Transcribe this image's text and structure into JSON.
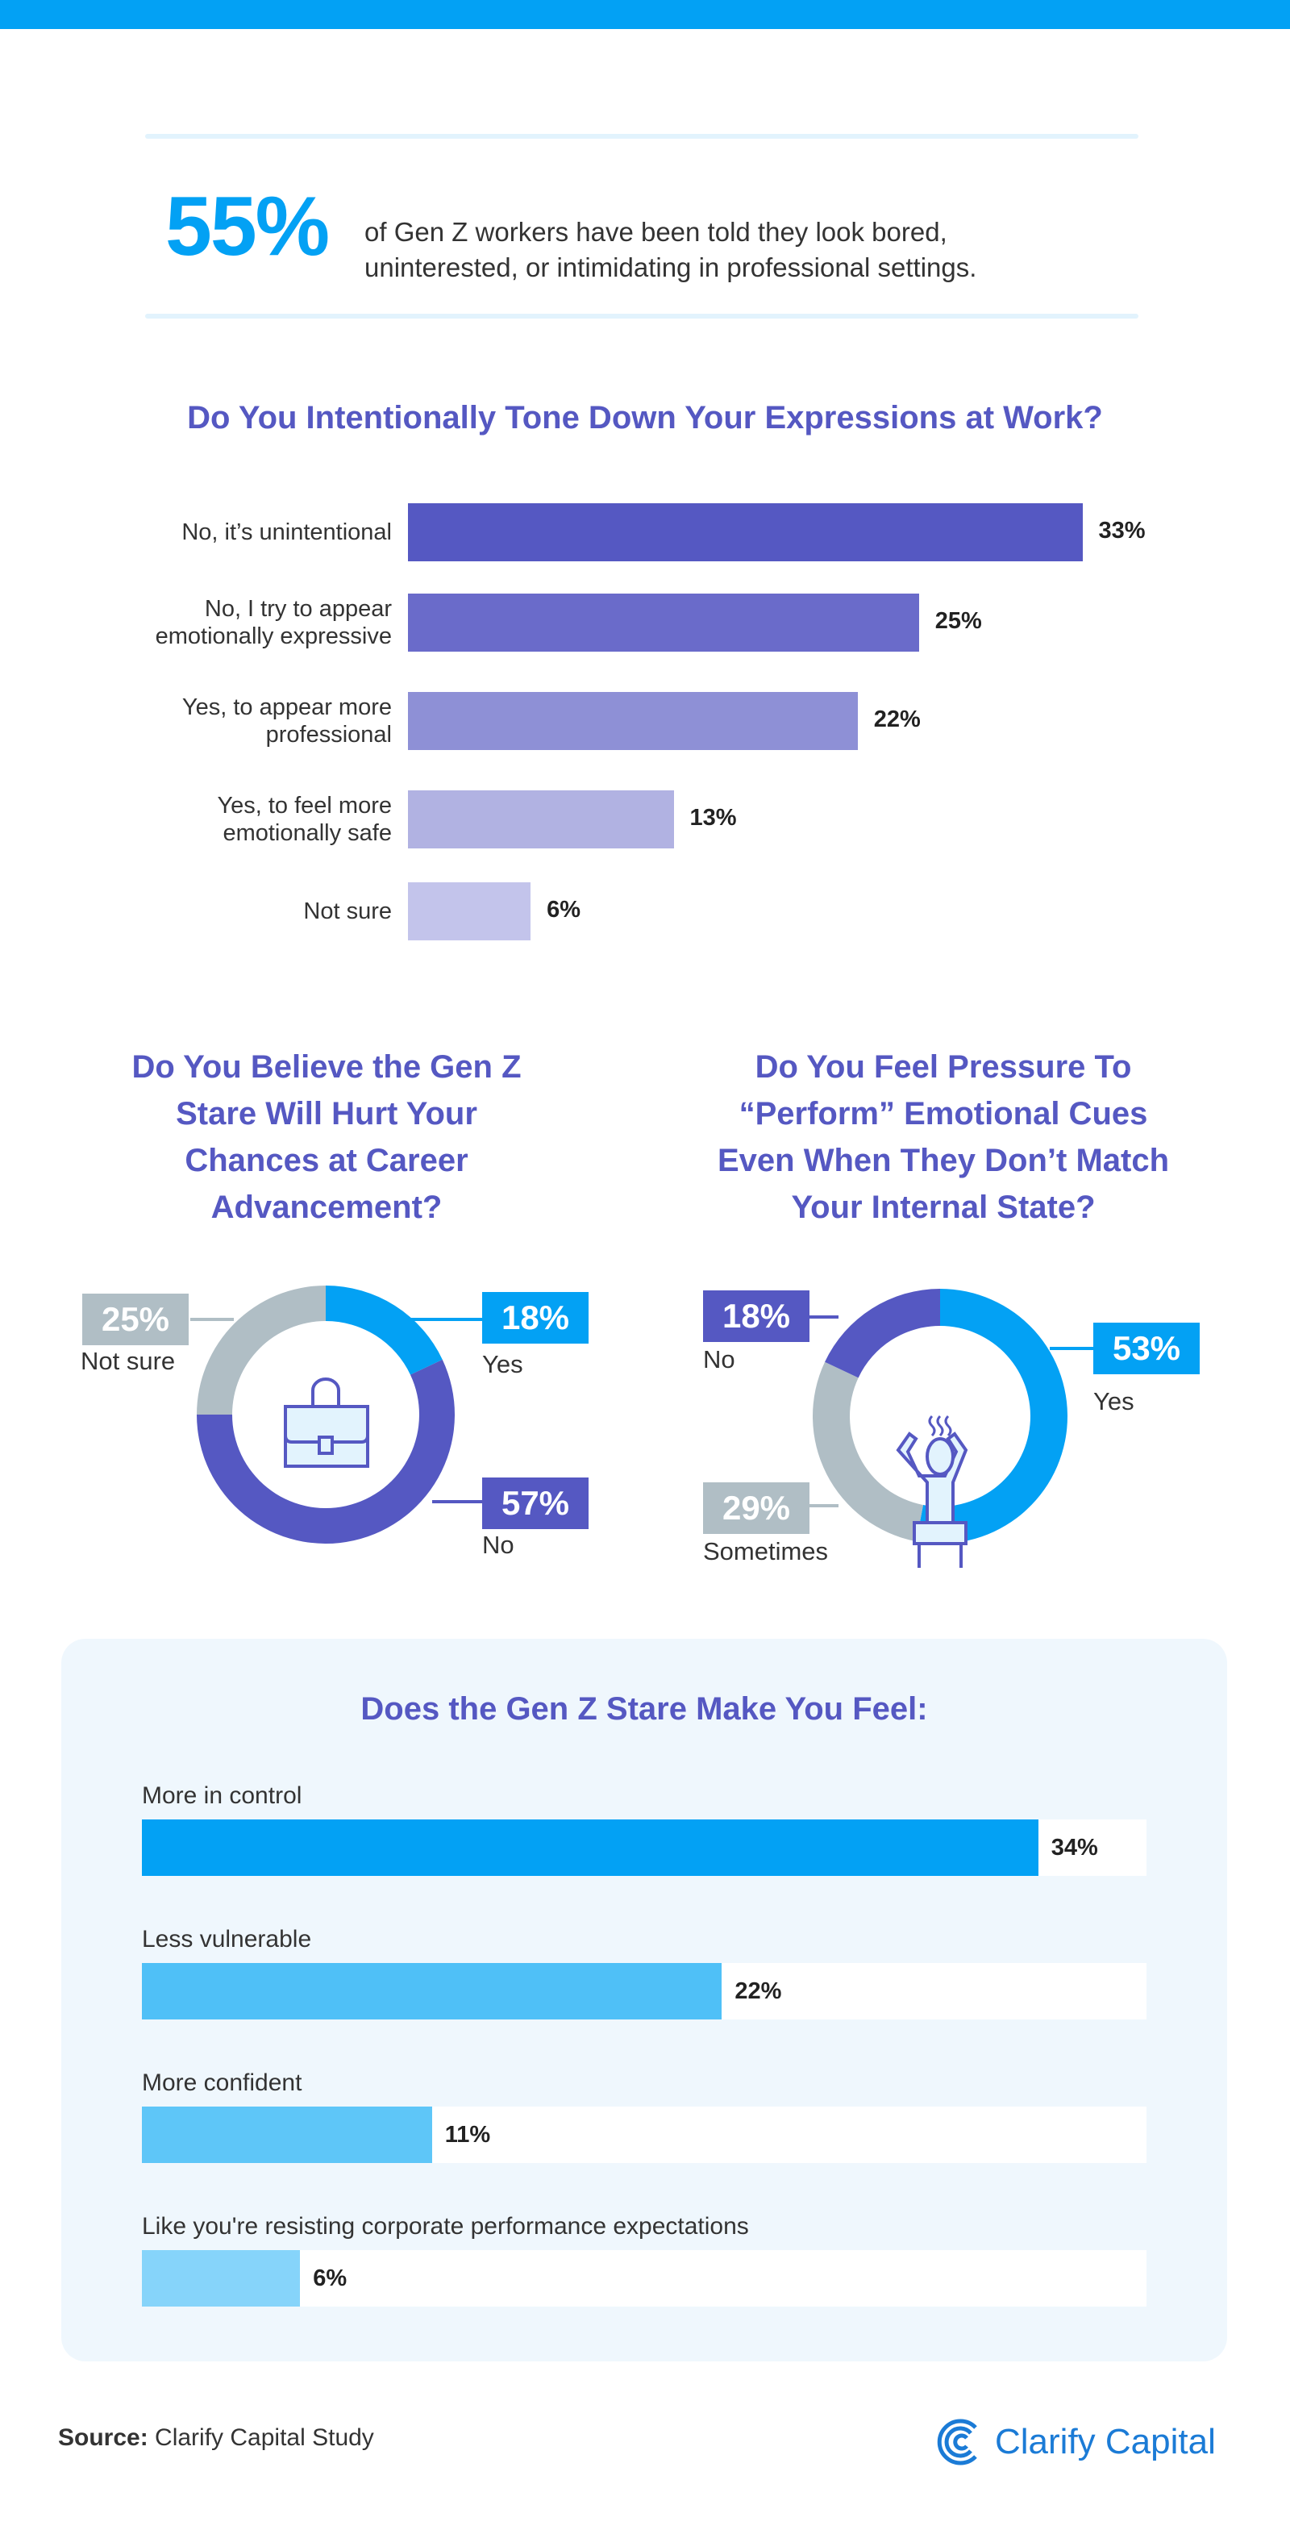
{
  "header": {
    "stat_value": "55%",
    "stat_text_line1": "of Gen Z workers have been told they look bored,",
    "stat_text_line2": "uninterested, or intimidating in professional settings."
  },
  "colors": {
    "blue": "#03a1f4",
    "purple": "#5558c2",
    "gray": "#b0bec5"
  },
  "chart_data": [
    {
      "type": "bar",
      "orientation": "horizontal",
      "title": "Do You Intentionally Tone Down Your Expressions at Work?",
      "categories": [
        "No, it’s unintentional",
        "No, I try to appear emotionally expressive",
        "Yes, to appear more professional",
        "Yes, to feel more emotionally safe",
        "Not sure"
      ],
      "category_lines": [
        [
          "No, it’s unintentional"
        ],
        [
          "No, I try to appear",
          "emotionally expressive"
        ],
        [
          "Yes, to appear more",
          "professional"
        ],
        [
          "Yes, to feel more",
          "emotionally safe"
        ],
        [
          "Not sure"
        ]
      ],
      "values": [
        33,
        25,
        22,
        13,
        6
      ],
      "labels": [
        "33%",
        "25%",
        "22%",
        "13%",
        "6%"
      ],
      "colors": [
        "#5558c2",
        "#6a6bca",
        "#8e90d6",
        "#b1b2e2",
        "#c3c4eb"
      ]
    },
    {
      "type": "pie",
      "donut": true,
      "title_lines": [
        "Do You Believe the Gen Z",
        "Stare Will Hurt Your",
        "Chances at Career",
        "Advancement?"
      ],
      "icon": "briefcase-icon",
      "slices": [
        {
          "label": "Yes",
          "value": 18,
          "text": "18%",
          "color": "#03a1f4"
        },
        {
          "label": "No",
          "value": 57,
          "text": "57%",
          "color": "#5558c2"
        },
        {
          "label": "Not sure",
          "value": 25,
          "text": "25%",
          "color": "#b0bec5"
        }
      ]
    },
    {
      "type": "pie",
      "donut": true,
      "title_lines": [
        "Do You Feel Pressure To",
        "“Perform” Emotional Cues",
        "Even When They Don’t Match",
        "Your Internal State?"
      ],
      "icon": "stressed-person-icon",
      "slices": [
        {
          "label": "Yes",
          "value": 53,
          "text": "53%",
          "color": "#03a1f4"
        },
        {
          "label": "Sometimes",
          "value": 29,
          "text": "29%",
          "color": "#b0bec5"
        },
        {
          "label": "No",
          "value": 18,
          "text": "18%",
          "color": "#5558c2"
        }
      ]
    },
    {
      "type": "bar",
      "orientation": "horizontal",
      "title": "Does the Gen Z Stare Make You Feel:",
      "categories": [
        "More in control",
        "Less vulnerable",
        "More confident",
        "Like you're resisting corporate performance expectations"
      ],
      "values": [
        34,
        22,
        11,
        6
      ],
      "labels": [
        "34%",
        "22%",
        "11%",
        "6%"
      ],
      "colors": [
        "#03a1f4",
        "#4fc0f7",
        "#5ec6f8",
        "#86d4fa"
      ]
    }
  ],
  "footer": {
    "source_label": "Source:",
    "source_text": " Clarify Capital Study",
    "logo_text": "Clarify Capital"
  }
}
